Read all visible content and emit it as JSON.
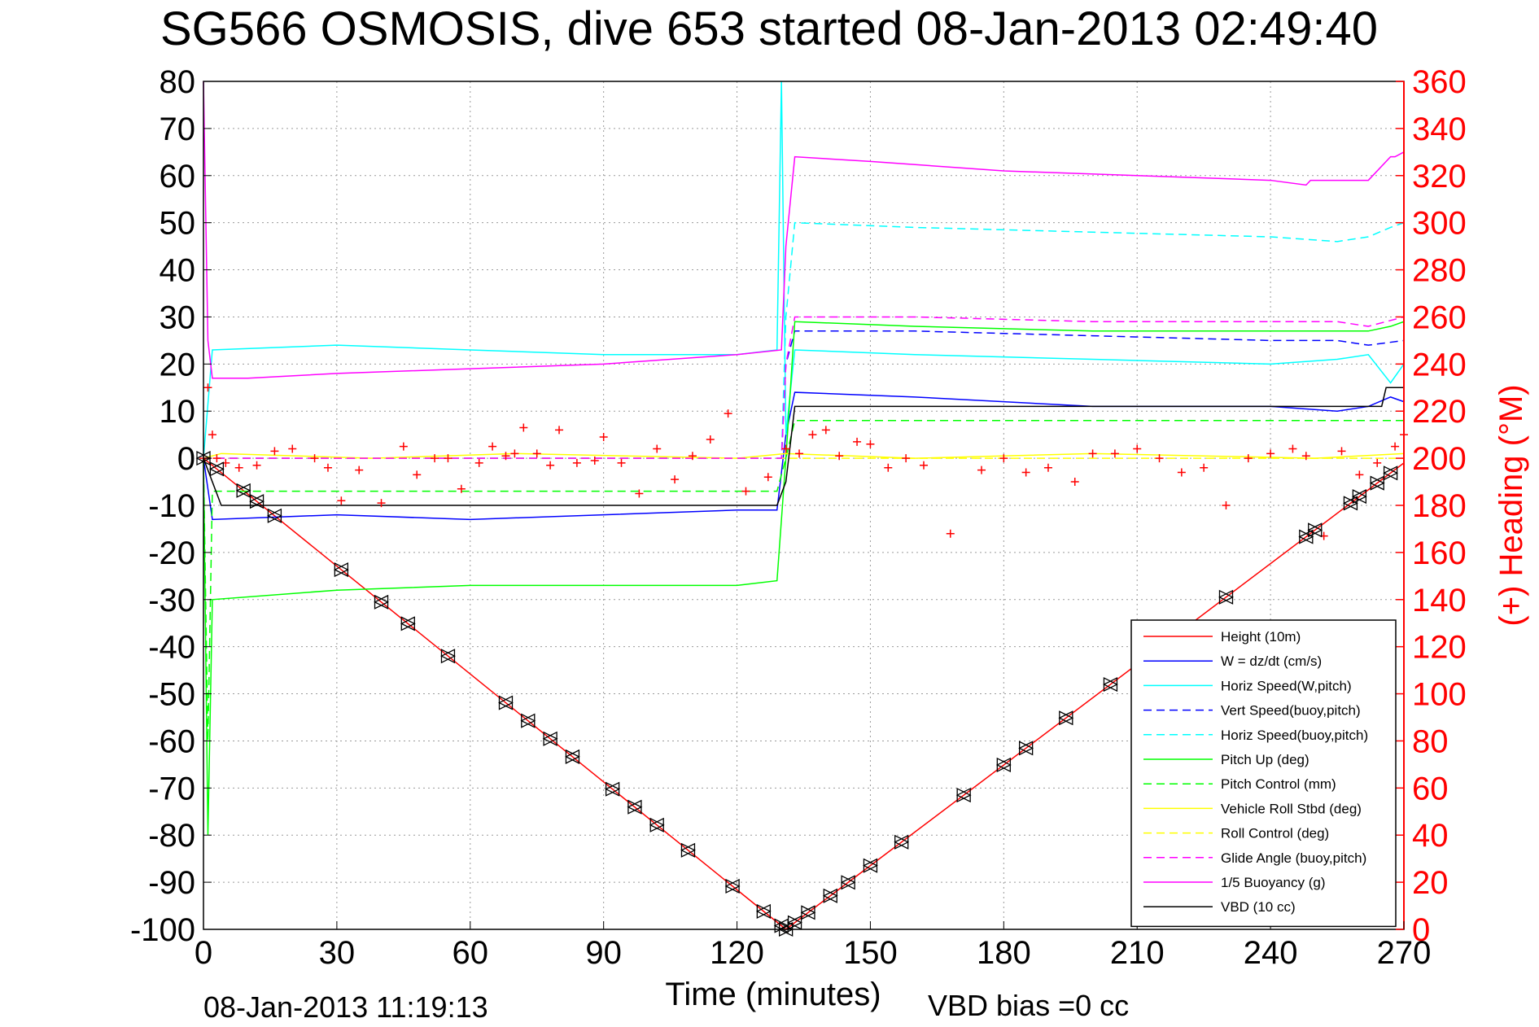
{
  "title": "SG566 OSMOSIS, dive 653 started 08-Jan-2013 02:49:40",
  "footer_left": "08-Jan-2013 11:19:13",
  "footer_right": "VBD bias =0 cc",
  "chart_data": {
    "type": "line",
    "title": "SG566 OSMOSIS, dive 653 started 08-Jan-2013 02:49:40",
    "xlabel": "Time (minutes)",
    "ylabel": "",
    "y2label": "(+) Heading (°M)",
    "xlim": [
      0,
      270
    ],
    "ylim": [
      -100,
      80
    ],
    "y2lim": [
      0,
      360
    ],
    "grid": true,
    "legend_position": "bottom-right",
    "xticks": [
      0,
      30,
      60,
      90,
      120,
      150,
      180,
      210,
      240,
      270
    ],
    "yticks": [
      -100,
      -90,
      -80,
      -70,
      -60,
      -50,
      -40,
      -30,
      -20,
      -10,
      0,
      10,
      20,
      30,
      40,
      50,
      60,
      70,
      80
    ],
    "y2ticks": [
      0,
      20,
      40,
      60,
      80,
      100,
      120,
      140,
      160,
      180,
      200,
      220,
      240,
      260,
      280,
      300,
      320,
      340,
      360
    ],
    "series": [
      {
        "name": "Height (10m)",
        "color": "#ff0000",
        "style": "solid",
        "x": [
          0,
          131,
          270
        ],
        "y": [
          0,
          -100,
          -1
        ]
      },
      {
        "name": "W = dz/dt (cm/s)",
        "color": "#0000ff",
        "style": "solid",
        "x": [
          0,
          2,
          30,
          60,
          90,
          120,
          129,
          131,
          133,
          160,
          200,
          240,
          255,
          262,
          267,
          270
        ],
        "y": [
          0,
          -13,
          -12,
          -13,
          -12,
          -11,
          -11,
          5,
          14,
          13,
          11,
          11,
          10,
          11,
          13,
          12
        ]
      },
      {
        "name": "Horiz Speed(W,pitch)",
        "color": "#00ffff",
        "style": "solid",
        "x": [
          0,
          2,
          30,
          60,
          90,
          120,
          129,
          130,
          131,
          133,
          160,
          200,
          240,
          255,
          262,
          267,
          270
        ],
        "y": [
          0,
          23,
          24,
          23,
          22,
          22,
          23,
          80,
          5,
          23,
          22,
          21,
          20,
          21,
          22,
          16,
          20
        ]
      },
      {
        "name": "Vert Speed(buoy,pitch)",
        "color": "#0000ff",
        "style": "dashed",
        "x": [
          0,
          2,
          130,
          131,
          133,
          160,
          200,
          240,
          255,
          262,
          270
        ],
        "y": [
          0,
          0,
          0,
          20,
          27,
          27,
          26,
          25,
          25,
          24,
          25
        ]
      },
      {
        "name": "Horiz Speed(buoy,pitch)",
        "color": "#00ffff",
        "style": "dashed",
        "x": [
          0,
          2,
          130,
          131,
          133,
          160,
          200,
          240,
          255,
          262,
          267,
          270
        ],
        "y": [
          0,
          0,
          0,
          30,
          50,
          49,
          48,
          47,
          46,
          47,
          49,
          50
        ]
      },
      {
        "name": "Pitch Up (deg)",
        "color": "#00ff00",
        "style": "solid",
        "x": [
          0,
          1,
          2,
          30,
          60,
          90,
          120,
          129,
          131,
          133,
          160,
          200,
          240,
          255,
          262,
          267,
          270
        ],
        "y": [
          0,
          -80,
          -30,
          -28,
          -27,
          -27,
          -27,
          -26,
          0,
          29,
          28,
          27,
          27,
          27,
          27,
          28,
          29
        ]
      },
      {
        "name": "Pitch Control (mm)",
        "color": "#00ff00",
        "style": "dashed",
        "x": [
          0,
          1,
          2,
          129,
          131,
          133,
          270
        ],
        "y": [
          0,
          -60,
          -7,
          -7,
          0,
          8,
          8
        ]
      },
      {
        "name": "Vehicle Roll Stbd (deg)",
        "color": "#ffff00",
        "style": "solid",
        "x": [
          0,
          4,
          38,
          70,
          120,
          131,
          160,
          200,
          250,
          270
        ],
        "y": [
          0,
          1,
          0,
          1,
          0,
          1,
          0,
          1,
          0,
          1
        ]
      },
      {
        "name": "Roll Control (deg)",
        "color": "#ffff00",
        "style": "dashed",
        "x": [
          0,
          270
        ],
        "y": [
          0,
          0
        ]
      },
      {
        "name": "Glide Angle (buoy,pitch)",
        "color": "#ff00ff",
        "style": "dashed",
        "x": [
          0,
          130,
          131,
          133,
          160,
          200,
          240,
          255,
          262,
          270
        ],
        "y": [
          0,
          0,
          20,
          30,
          30,
          29,
          29,
          29,
          28,
          30
        ]
      },
      {
        "name": "1/5 Buoyancy (g)",
        "color": "#ff00ff",
        "style": "solid",
        "x": [
          0,
          1,
          2,
          10,
          30,
          60,
          90,
          120,
          130,
          131,
          133,
          150,
          180,
          210,
          240,
          248,
          249,
          260,
          262,
          267,
          268,
          270
        ],
        "y": [
          80,
          25,
          17,
          17,
          18,
          19,
          20,
          22,
          23,
          45,
          64,
          63,
          61,
          60,
          59,
          58,
          59,
          59,
          59,
          64,
          64,
          65
        ]
      },
      {
        "name": "VBD (10 cc)",
        "color": "#000000",
        "style": "solid",
        "x": [
          0,
          2,
          4,
          129,
          131,
          133,
          265,
          266,
          270
        ],
        "y": [
          0,
          -5,
          -10,
          -10,
          -5,
          11,
          11,
          15,
          15
        ]
      }
    ],
    "heading_series": {
      "name": "Heading",
      "color": "#ff0000",
      "marker": "+",
      "axis": "right",
      "x": [
        0,
        1,
        2,
        3,
        5,
        8,
        12,
        16,
        20,
        25,
        28,
        31,
        35,
        40,
        45,
        48,
        52,
        55,
        58,
        62,
        65,
        68,
        70,
        72,
        75,
        78,
        80,
        84,
        88,
        90,
        94,
        98,
        102,
        106,
        110,
        114,
        118,
        122,
        127,
        131,
        134,
        137,
        140,
        143,
        147,
        150,
        154,
        158,
        162,
        168,
        175,
        180,
        185,
        190,
        196,
        200,
        205,
        210,
        215,
        220,
        225,
        230,
        235,
        240,
        245,
        248,
        252,
        256,
        260,
        264,
        268,
        270
      ],
      "y": [
        200,
        230,
        210,
        200,
        198,
        196,
        197,
        203,
        204,
        200,
        196,
        182,
        195,
        181,
        205,
        193,
        200,
        200,
        187,
        198,
        205,
        201,
        202,
        213,
        202,
        197,
        212,
        198,
        199,
        209,
        198,
        185,
        204,
        191,
        201,
        208,
        219,
        186,
        192,
        204,
        202,
        210,
        212,
        201,
        207,
        206,
        196,
        200,
        197,
        168,
        195,
        200,
        194,
        196,
        190,
        202,
        202,
        204,
        200,
        194,
        196,
        180,
        200,
        202,
        204,
        201,
        167,
        203,
        193,
        198,
        205,
        210
      ]
    },
    "depth_markers": {
      "name": "Height markers",
      "marker": "triangle",
      "color": "#000000",
      "x": [
        0,
        3,
        9,
        12,
        16,
        31,
        40,
        46,
        55,
        68,
        73,
        78,
        83,
        92,
        97,
        102,
        109,
        119,
        126,
        130,
        131,
        133,
        136,
        141,
        145,
        150,
        157,
        171,
        180,
        185,
        194,
        204,
        230,
        248,
        250,
        258,
        260,
        264,
        267
      ]
    }
  }
}
